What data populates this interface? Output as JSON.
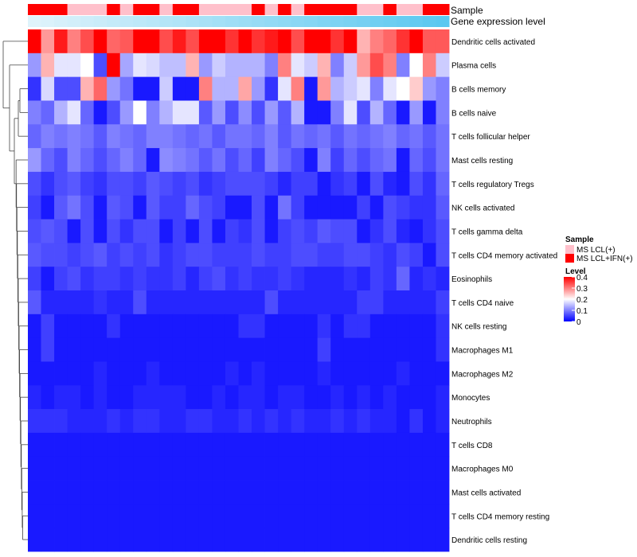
{
  "chart_data": {
    "type": "heatmap",
    "annotation_tracks": [
      "Sample",
      "Gene expression level"
    ],
    "sample_annotation": [
      1,
      1,
      1,
      0,
      0,
      0,
      1,
      0,
      1,
      1,
      0,
      1,
      1,
      0,
      0,
      0,
      0,
      1,
      0,
      1,
      0,
      1,
      1,
      1,
      1,
      0,
      0,
      1,
      0,
      0,
      1,
      1
    ],
    "sample_colors": {
      "MS LCL(+)": "#ffc0cb",
      "MS LCL+IFN(+)": "#ff0000"
    },
    "gene_expression_gradient": [
      "#dff3fb",
      "#5bc8f0"
    ],
    "rows": [
      "Dendritic cells activated",
      "Plasma cells",
      "B cells memory",
      "B cells naive",
      "T cells follicular helper",
      "Mast cells resting",
      "T cells regulatory  Tregs",
      "NK cells activated",
      "T cells gamma delta",
      "T cells CD4 memory activated",
      "Eosinophils",
      "T cells CD4 naive",
      "NK cells resting",
      "Macrophages M1",
      "Macrophages M2",
      "Monocytes",
      "Neutrophils",
      "T cells CD8",
      "Macrophages M0",
      "Mast cells activated",
      "T cells CD4 memory resting",
      "Dendritic cells resting"
    ],
    "values": [
      [
        0.4,
        0.28,
        0.38,
        0.3,
        0.34,
        0.4,
        0.32,
        0.33,
        0.4,
        0.4,
        0.34,
        0.38,
        0.34,
        0.4,
        0.4,
        0.36,
        0.4,
        0.36,
        0.38,
        0.4,
        0.34,
        0.4,
        0.4,
        0.36,
        0.4,
        0.26,
        0.3,
        0.32,
        0.36,
        0.4,
        0.33,
        0.33
      ],
      [
        0.12,
        0.26,
        0.18,
        0.18,
        0.2,
        0.06,
        0.4,
        0.13,
        0.18,
        0.17,
        0.15,
        0.15,
        0.26,
        0.12,
        0.16,
        0.14,
        0.14,
        0.14,
        0.1,
        0.3,
        0.18,
        0.16,
        0.26,
        0.1,
        0.16,
        0.28,
        0.34,
        0.3,
        0.1,
        0.2,
        0.3,
        0.16
      ],
      [
        0.04,
        0.17,
        0.06,
        0.06,
        0.26,
        0.32,
        0.12,
        0.09,
        0.02,
        0.02,
        0.16,
        0.02,
        0.02,
        0.3,
        0.14,
        0.14,
        0.27,
        0.12,
        0.04,
        0.18,
        0.3,
        0.02,
        0.28,
        0.14,
        0.16,
        0.18,
        0.1,
        0.18,
        0.2,
        0.24,
        0.12,
        0.1
      ],
      [
        0.1,
        0.08,
        0.14,
        0.18,
        0.08,
        0.02,
        0.06,
        0.12,
        0.2,
        0.1,
        0.14,
        0.18,
        0.18,
        0.07,
        0.12,
        0.06,
        0.11,
        0.06,
        0.12,
        0.07,
        0.14,
        0.02,
        0.02,
        0.1,
        0.18,
        0.06,
        0.14,
        0.08,
        0.02,
        0.12,
        0.02,
        0.1
      ],
      [
        0.08,
        0.1,
        0.09,
        0.1,
        0.09,
        0.07,
        0.1,
        0.09,
        0.08,
        0.1,
        0.1,
        0.09,
        0.08,
        0.09,
        0.07,
        0.09,
        0.09,
        0.08,
        0.1,
        0.07,
        0.09,
        0.08,
        0.09,
        0.07,
        0.09,
        0.08,
        0.09,
        0.1,
        0.08,
        0.09,
        0.07,
        0.09
      ],
      [
        0.12,
        0.08,
        0.06,
        0.1,
        0.08,
        0.06,
        0.08,
        0.1,
        0.08,
        0.02,
        0.11,
        0.1,
        0.09,
        0.07,
        0.09,
        0.06,
        0.08,
        0.05,
        0.1,
        0.08,
        0.06,
        0.02,
        0.1,
        0.05,
        0.08,
        0.06,
        0.08,
        0.09,
        0.02,
        0.08,
        0.06,
        0.09
      ],
      [
        0.06,
        0.04,
        0.06,
        0.07,
        0.05,
        0.04,
        0.06,
        0.06,
        0.05,
        0.07,
        0.06,
        0.05,
        0.06,
        0.04,
        0.05,
        0.06,
        0.06,
        0.06,
        0.05,
        0.03,
        0.05,
        0.05,
        0.02,
        0.04,
        0.05,
        0.02,
        0.06,
        0.03,
        0.02,
        0.06,
        0.04,
        0.08
      ],
      [
        0.05,
        0.02,
        0.07,
        0.09,
        0.06,
        0.02,
        0.07,
        0.06,
        0.02,
        0.07,
        0.05,
        0.05,
        0.08,
        0.06,
        0.05,
        0.02,
        0.02,
        0.06,
        0.02,
        0.09,
        0.05,
        0.02,
        0.02,
        0.02,
        0.02,
        0.05,
        0.02,
        0.06,
        0.05,
        0.04,
        0.04,
        0.07
      ],
      [
        0.06,
        0.07,
        0.06,
        0.02,
        0.06,
        0.02,
        0.06,
        0.04,
        0.06,
        0.06,
        0.02,
        0.05,
        0.02,
        0.06,
        0.02,
        0.05,
        0.04,
        0.06,
        0.02,
        0.05,
        0.06,
        0.05,
        0.07,
        0.06,
        0.06,
        0.02,
        0.04,
        0.06,
        0.03,
        0.02,
        0.04,
        0.06
      ],
      [
        0.07,
        0.06,
        0.06,
        0.05,
        0.06,
        0.07,
        0.05,
        0.06,
        0.05,
        0.06,
        0.04,
        0.05,
        0.06,
        0.06,
        0.05,
        0.05,
        0.05,
        0.06,
        0.05,
        0.05,
        0.06,
        0.06,
        0.05,
        0.05,
        0.06,
        0.06,
        0.05,
        0.04,
        0.06,
        0.05,
        0.02,
        0.06
      ],
      [
        0.05,
        0.02,
        0.05,
        0.06,
        0.04,
        0.05,
        0.05,
        0.04,
        0.05,
        0.04,
        0.04,
        0.05,
        0.03,
        0.05,
        0.06,
        0.04,
        0.05,
        0.04,
        0.04,
        0.05,
        0.04,
        0.03,
        0.03,
        0.03,
        0.04,
        0.03,
        0.05,
        0.04,
        0.08,
        0.03,
        0.04,
        0.03
      ],
      [
        0.07,
        0.03,
        0.03,
        0.03,
        0.03,
        0.04,
        0.03,
        0.03,
        0.06,
        0.03,
        0.03,
        0.03,
        0.03,
        0.03,
        0.03,
        0.03,
        0.03,
        0.03,
        0.06,
        0.03,
        0.03,
        0.03,
        0.03,
        0.03,
        0.03,
        0.05,
        0.05,
        0.03,
        0.03,
        0.03,
        0.03,
        0.05
      ],
      [
        0.02,
        0.05,
        0.02,
        0.02,
        0.02,
        0.02,
        0.04,
        0.02,
        0.02,
        0.02,
        0.02,
        0.02,
        0.02,
        0.02,
        0.02,
        0.02,
        0.04,
        0.04,
        0.02,
        0.02,
        0.02,
        0.02,
        0.04,
        0.02,
        0.04,
        0.04,
        0.02,
        0.02,
        0.02,
        0.02,
        0.02,
        0.04
      ],
      [
        0.02,
        0.05,
        0.02,
        0.02,
        0.02,
        0.02,
        0.02,
        0.02,
        0.02,
        0.02,
        0.02,
        0.02,
        0.02,
        0.02,
        0.02,
        0.02,
        0.02,
        0.02,
        0.02,
        0.02,
        0.02,
        0.02,
        0.05,
        0.02,
        0.02,
        0.02,
        0.02,
        0.02,
        0.02,
        0.02,
        0.02,
        0.04
      ],
      [
        0.02,
        0.02,
        0.02,
        0.02,
        0.02,
        0.03,
        0.02,
        0.02,
        0.02,
        0.03,
        0.02,
        0.02,
        0.02,
        0.02,
        0.02,
        0.03,
        0.02,
        0.03,
        0.02,
        0.02,
        0.02,
        0.02,
        0.03,
        0.02,
        0.02,
        0.02,
        0.02,
        0.02,
        0.03,
        0.02,
        0.02,
        0.02
      ],
      [
        0.03,
        0.02,
        0.03,
        0.03,
        0.02,
        0.03,
        0.02,
        0.02,
        0.03,
        0.03,
        0.03,
        0.03,
        0.02,
        0.02,
        0.03,
        0.02,
        0.03,
        0.03,
        0.02,
        0.03,
        0.03,
        0.02,
        0.02,
        0.03,
        0.02,
        0.03,
        0.02,
        0.03,
        0.02,
        0.02,
        0.02,
        0.03
      ],
      [
        0.04,
        0.04,
        0.04,
        0.03,
        0.03,
        0.03,
        0.04,
        0.03,
        0.04,
        0.04,
        0.03,
        0.03,
        0.04,
        0.04,
        0.03,
        0.03,
        0.04,
        0.03,
        0.04,
        0.03,
        0.04,
        0.03,
        0.03,
        0.04,
        0.03,
        0.04,
        0.03,
        0.03,
        0.02,
        0.04,
        0.02,
        0.03
      ],
      [
        0.02,
        0.02,
        0.02,
        0.02,
        0.02,
        0.02,
        0.02,
        0.02,
        0.02,
        0.02,
        0.02,
        0.02,
        0.02,
        0.02,
        0.02,
        0.02,
        0.02,
        0.02,
        0.02,
        0.02,
        0.02,
        0.02,
        0.02,
        0.02,
        0.02,
        0.02,
        0.02,
        0.02,
        0.02,
        0.02,
        0.02,
        0.02
      ],
      [
        0.02,
        0.02,
        0.02,
        0.02,
        0.02,
        0.02,
        0.02,
        0.02,
        0.02,
        0.02,
        0.02,
        0.02,
        0.02,
        0.02,
        0.02,
        0.02,
        0.02,
        0.02,
        0.02,
        0.02,
        0.02,
        0.02,
        0.02,
        0.02,
        0.02,
        0.02,
        0.02,
        0.02,
        0.02,
        0.02,
        0.02,
        0.02
      ],
      [
        0.02,
        0.02,
        0.02,
        0.02,
        0.02,
        0.02,
        0.02,
        0.02,
        0.02,
        0.02,
        0.02,
        0.02,
        0.02,
        0.02,
        0.02,
        0.02,
        0.02,
        0.02,
        0.02,
        0.02,
        0.02,
        0.02,
        0.02,
        0.02,
        0.02,
        0.02,
        0.02,
        0.02,
        0.02,
        0.02,
        0.02,
        0.02
      ],
      [
        0.02,
        0.02,
        0.02,
        0.02,
        0.02,
        0.02,
        0.02,
        0.02,
        0.02,
        0.02,
        0.02,
        0.02,
        0.02,
        0.02,
        0.02,
        0.02,
        0.02,
        0.02,
        0.02,
        0.02,
        0.02,
        0.02,
        0.02,
        0.02,
        0.02,
        0.02,
        0.02,
        0.02,
        0.02,
        0.02,
        0.02,
        0.02
      ],
      [
        0.02,
        0.02,
        0.02,
        0.02,
        0.02,
        0.02,
        0.02,
        0.02,
        0.02,
        0.02,
        0.02,
        0.02,
        0.02,
        0.02,
        0.02,
        0.02,
        0.02,
        0.02,
        0.02,
        0.02,
        0.02,
        0.02,
        0.02,
        0.02,
        0.02,
        0.02,
        0.02,
        0.02,
        0.02,
        0.02,
        0.02,
        0.02
      ]
    ],
    "color_scale": {
      "min": 0,
      "max": 0.4,
      "colors": [
        "#0000ff",
        "#ffffff",
        "#ff0000"
      ]
    },
    "legend": {
      "sample_title": "Sample",
      "sample_entries": [
        "MS LCL(+)",
        "MS LCL+IFN(+)"
      ],
      "level_title": "Level",
      "level_ticks": [
        "0.4",
        "0.3",
        "0.2",
        "0.1",
        "0"
      ],
      "placement": "right"
    }
  }
}
